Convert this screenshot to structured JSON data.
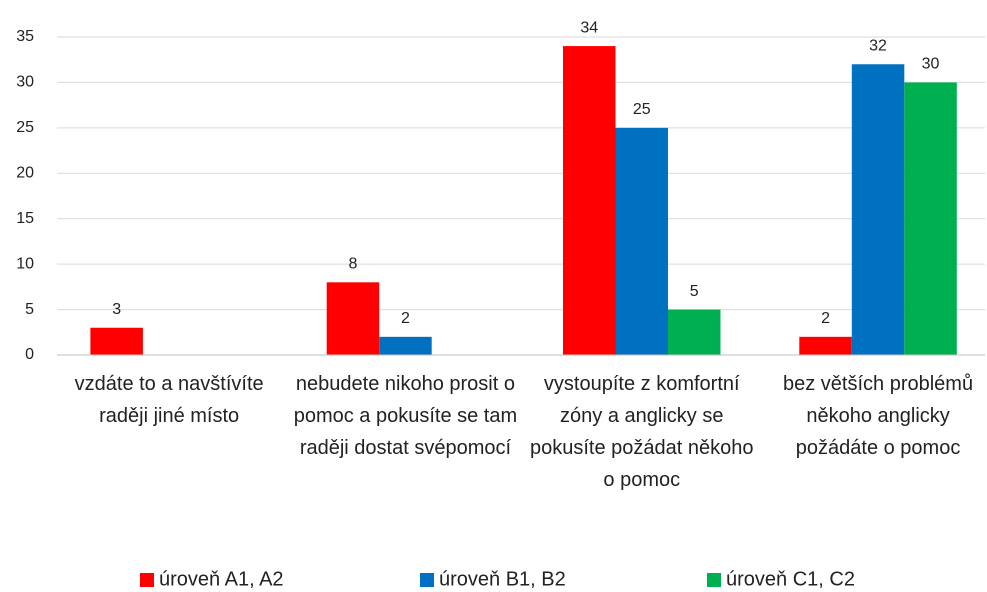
{
  "chart_data": {
    "type": "bar",
    "categories": [
      "vzdáte to a navštívíte raději jiné místo",
      "nebudete nikoho prosit o pomoc a pokusíte se tam raději dostat svépomocí",
      "vystoupíte z komfortní zóny a anglicky se pokusíte požádat někoho o pomoc",
      "bez větších problémů někoho anglicky požádáte o pomoc"
    ],
    "series": [
      {
        "name": "úroveň A1, A2",
        "color": "#ff0000",
        "values": [
          3,
          8,
          34,
          2
        ]
      },
      {
        "name": "úroveň B1, B2",
        "color": "#0070c0",
        "values": [
          null,
          2,
          25,
          32
        ]
      },
      {
        "name": "úroveň C1, C2",
        "color": "#00b050",
        "values": [
          null,
          null,
          5,
          30
        ]
      }
    ],
    "ylim": [
      0,
      35
    ],
    "yticks": [
      0,
      5,
      10,
      15,
      20,
      25,
      30,
      35
    ],
    "grid": true,
    "legend": "bottom"
  }
}
